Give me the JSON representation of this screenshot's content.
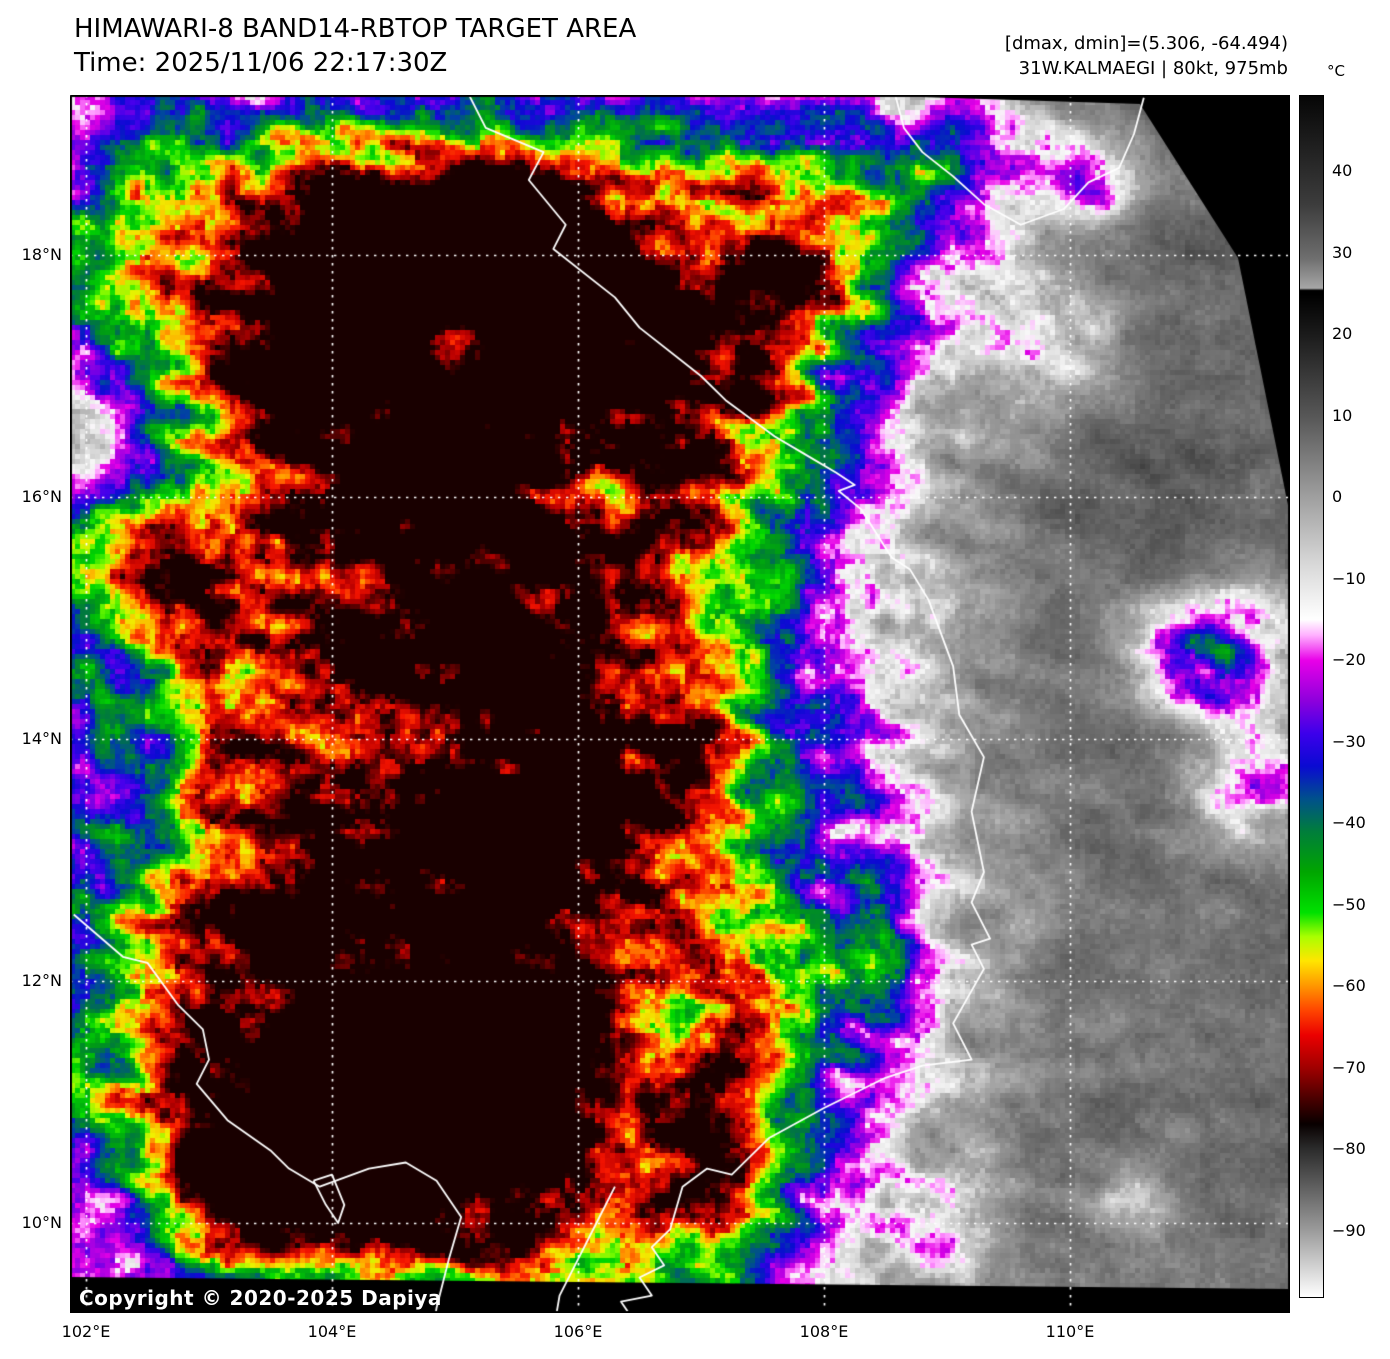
{
  "header": {
    "title": "HIMAWARI-8 BAND14-RBTOP TARGET AREA",
    "time_label": "Time: 2025/11/06 22:17:30Z"
  },
  "annotations": {
    "dmax_dmin": "[dmax, dmin]=(5.306, -64.494)",
    "storm": "31W.KALMAEGI | 80kt, 975mb"
  },
  "storm_info": {
    "satellite": "HIMAWARI-8",
    "band": "BAND14",
    "product": "RBTOP",
    "area": "TARGET AREA",
    "storm_id": "31W",
    "storm_name": "KALMAEGI",
    "intensity": "80kt",
    "pressure": "975mb",
    "dmax": "5.306",
    "dmin": "-64.494",
    "time": "2025/11/06 22:17:30Z"
  },
  "colorbar": {
    "unit": "°C",
    "tick_values": [
      40,
      30,
      20,
      10,
      0,
      -10,
      -20,
      -30,
      -40,
      -50,
      -60,
      -70,
      -80,
      -90
    ],
    "tick_labels": [
      "40",
      "30",
      "20",
      "10",
      "0",
      "−10",
      "−20",
      "−30",
      "−40",
      "−50",
      "−60",
      "−70",
      "−80",
      "−90"
    ]
  },
  "axes": {
    "lon_labels": [
      "102°E",
      "104°E",
      "106°E",
      "108°E",
      "110°E"
    ],
    "lat_labels": [
      "18°N",
      "16°N",
      "14°N",
      "12°N",
      "10°N"
    ]
  },
  "copyright": "Copyright © 2020-2025 Dapiya"
}
